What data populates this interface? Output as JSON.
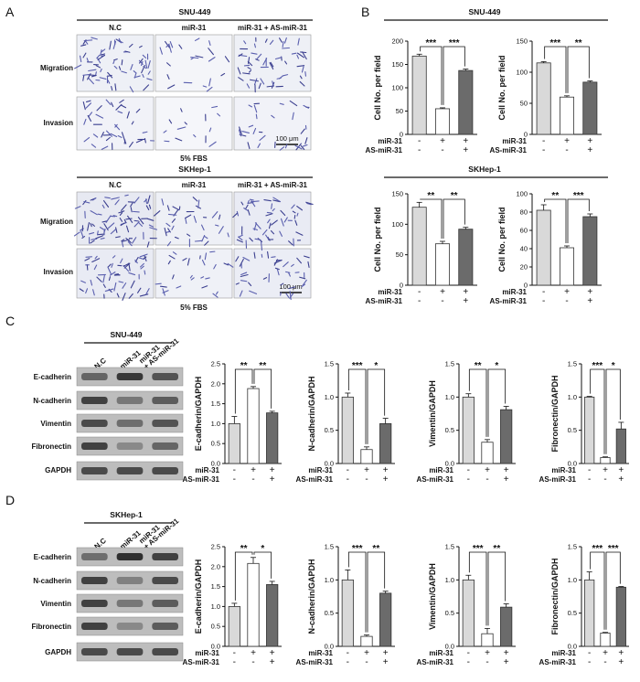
{
  "panels": {
    "A": "A",
    "B": "B",
    "C": "C",
    "D": "D"
  },
  "panel_a": {
    "snu": {
      "title": "SNU-449",
      "cols": [
        "N.C",
        "miR-31",
        "miR-31 + AS-miR-31"
      ],
      "rows": [
        "Migration",
        "Invasion"
      ],
      "scale": "100 μm",
      "footer": "5% FBS"
    },
    "skh": {
      "title": "SKHep-1",
      "cols": [
        "N.C",
        "miR-31",
        "miR-31 + AS-miR-31"
      ],
      "rows": [
        "Migration",
        "Invasion"
      ],
      "scale": "100 μm",
      "footer": "5% FBS"
    }
  },
  "panel_b": {
    "snu_title": "SNU-449",
    "skh_title": "SKHep-1"
  },
  "panel_c": {
    "blot_title": "SNU-449",
    "lanes": [
      "N.C",
      "miR-31",
      "miR-31\n+ AS-miR-31"
    ],
    "proteins": [
      "E-cadherin",
      "N-cadherin",
      "Vimentin",
      "Fibronectin",
      "GAPDH"
    ]
  },
  "panel_d": {
    "blot_title": "SKHep-1",
    "lanes": [
      "N.C",
      "miR-31",
      "miR-31\n+ AS-miR-31"
    ],
    "proteins": [
      "E-cadherin",
      "N-cadherin",
      "Vimentin",
      "Fibronectin",
      "GAPDH"
    ]
  },
  "treatment_rows": {
    "mir": "miR-31",
    "as": "AS-miR-31",
    "mir_signs": [
      "-",
      "+",
      "+"
    ],
    "as_signs": [
      "-",
      "-",
      "+"
    ]
  },
  "colors": {
    "nc": "#d9d9d9",
    "mir": "#ffffff",
    "combo": "#6b6b6b",
    "edge": "#333333"
  },
  "chart_data": [
    {
      "id": "B1",
      "type": "bar",
      "panel": "B",
      "cell_line": "SNU-449",
      "ylabel": "Cell No. per field",
      "categories": [
        "N.C",
        "miR-31",
        "miR-31 + AS-miR-31"
      ],
      "values": [
        168,
        55,
        137
      ],
      "errors": [
        4,
        2,
        3
      ],
      "ylim": [
        0,
        200
      ],
      "yticks": [
        0,
        50,
        100,
        150,
        200
      ],
      "sig": [
        {
          "from": 0,
          "to": 1,
          "label": "***"
        },
        {
          "from": 1,
          "to": 2,
          "label": "***"
        }
      ]
    },
    {
      "id": "B2",
      "type": "bar",
      "panel": "B",
      "cell_line": "SNU-449",
      "ylabel": "Cell No. per field",
      "categories": [
        "N.C",
        "miR-31",
        "miR-31 + AS-miR-31"
      ],
      "values": [
        115,
        60,
        84
      ],
      "errors": [
        2,
        2,
        2
      ],
      "ylim": [
        0,
        150
      ],
      "yticks": [
        0,
        50,
        100,
        150
      ],
      "sig": [
        {
          "from": 0,
          "to": 1,
          "label": "***"
        },
        {
          "from": 1,
          "to": 2,
          "label": "**"
        }
      ]
    },
    {
      "id": "B3",
      "type": "bar",
      "panel": "B",
      "cell_line": "SKHep-1",
      "ylabel": "Cell No. per field",
      "categories": [
        "N.C",
        "miR-31",
        "miR-31 + AS-miR-31"
      ],
      "values": [
        128,
        68,
        92
      ],
      "errors": [
        8,
        4,
        3
      ],
      "ylim": [
        0,
        150
      ],
      "yticks": [
        0,
        50,
        100,
        150
      ],
      "sig": [
        {
          "from": 0,
          "to": 1,
          "label": "**"
        },
        {
          "from": 1,
          "to": 2,
          "label": "**"
        }
      ]
    },
    {
      "id": "B4",
      "type": "bar",
      "panel": "B",
      "cell_line": "SKHep-1",
      "ylabel": "Cell No. per field",
      "categories": [
        "N.C",
        "miR-31",
        "miR-31 + AS-miR-31"
      ],
      "values": [
        82,
        41,
        75
      ],
      "errors": [
        6,
        2,
        3
      ],
      "ylim": [
        0,
        100
      ],
      "yticks": [
        0,
        20,
        40,
        60,
        80,
        100
      ],
      "sig": [
        {
          "from": 0,
          "to": 1,
          "label": "**"
        },
        {
          "from": 1,
          "to": 2,
          "label": "***"
        }
      ]
    },
    {
      "id": "C1",
      "type": "bar",
      "panel": "C",
      "ylabel": "E-cadherin/GAPDH",
      "categories": [
        "N.C",
        "miR-31",
        "miR-31 + AS-miR-31"
      ],
      "values": [
        1.0,
        1.88,
        1.27
      ],
      "errors": [
        0.18,
        0.05,
        0.04
      ],
      "ylim": [
        0,
        2.5
      ],
      "yticks": [
        0.0,
        0.5,
        1.0,
        1.5,
        2.0,
        2.5
      ],
      "sig": [
        {
          "from": 0,
          "to": 1,
          "label": "**"
        },
        {
          "from": 1,
          "to": 2,
          "label": "**"
        }
      ]
    },
    {
      "id": "C2",
      "type": "bar",
      "panel": "C",
      "ylabel": "N-cadherin/GAPDH",
      "categories": [
        "N.C",
        "miR-31",
        "miR-31 + AS-miR-31"
      ],
      "values": [
        1.0,
        0.21,
        0.6
      ],
      "errors": [
        0.06,
        0.04,
        0.08
      ],
      "ylim": [
        0,
        1.5
      ],
      "yticks": [
        0.0,
        0.5,
        1.0,
        1.5
      ],
      "sig": [
        {
          "from": 0,
          "to": 1,
          "label": "***"
        },
        {
          "from": 1,
          "to": 2,
          "label": "*"
        }
      ]
    },
    {
      "id": "C3",
      "type": "bar",
      "panel": "C",
      "ylabel": "Vimentin/GAPDH",
      "categories": [
        "N.C",
        "miR-31",
        "miR-31 + AS-miR-31"
      ],
      "values": [
        1.0,
        0.32,
        0.81
      ],
      "errors": [
        0.05,
        0.04,
        0.05
      ],
      "ylim": [
        0,
        1.5
      ],
      "yticks": [
        0.0,
        0.5,
        1.0,
        1.5
      ],
      "sig": [
        {
          "from": 0,
          "to": 1,
          "label": "**"
        },
        {
          "from": 1,
          "to": 2,
          "label": "*"
        }
      ]
    },
    {
      "id": "C4",
      "type": "bar",
      "panel": "C",
      "ylabel": "Fibronectin/GAPDH",
      "categories": [
        "N.C",
        "miR-31",
        "miR-31 + AS-miR-31"
      ],
      "values": [
        1.0,
        0.09,
        0.52
      ],
      "errors": [
        0.01,
        0.01,
        0.1
      ],
      "ylim": [
        0,
        1.5
      ],
      "yticks": [
        0.0,
        0.5,
        1.0,
        1.5
      ],
      "sig": [
        {
          "from": 0,
          "to": 1,
          "label": "***"
        },
        {
          "from": 1,
          "to": 2,
          "label": "*"
        }
      ]
    },
    {
      "id": "D1",
      "type": "bar",
      "panel": "D",
      "ylabel": "E-cadherin/GAPDH",
      "categories": [
        "N.C",
        "miR-31",
        "miR-31 + AS-miR-31"
      ],
      "values": [
        1.0,
        2.08,
        1.55
      ],
      "errors": [
        0.08,
        0.15,
        0.08
      ],
      "ylim": [
        0,
        2.5
      ],
      "yticks": [
        0.0,
        0.5,
        1.0,
        1.5,
        2.0,
        2.5
      ],
      "sig": [
        {
          "from": 0,
          "to": 1,
          "label": "**"
        },
        {
          "from": 1,
          "to": 2,
          "label": "*"
        }
      ]
    },
    {
      "id": "D2",
      "type": "bar",
      "panel": "D",
      "ylabel": "N-cadherin/GAPDH",
      "categories": [
        "N.C",
        "miR-31",
        "miR-31 + AS-miR-31"
      ],
      "values": [
        1.0,
        0.15,
        0.8
      ],
      "errors": [
        0.15,
        0.02,
        0.03
      ],
      "ylim": [
        0,
        1.5
      ],
      "yticks": [
        0.0,
        0.5,
        1.0,
        1.5
      ],
      "sig": [
        {
          "from": 0,
          "to": 1,
          "label": "***"
        },
        {
          "from": 1,
          "to": 2,
          "label": "**"
        }
      ]
    },
    {
      "id": "D3",
      "type": "bar",
      "panel": "D",
      "ylabel": "Vimentin/GAPDH",
      "categories": [
        "N.C",
        "miR-31",
        "miR-31 + AS-miR-31"
      ],
      "values": [
        1.0,
        0.19,
        0.59
      ],
      "errors": [
        0.07,
        0.08,
        0.05
      ],
      "ylim": [
        0,
        1.5
      ],
      "yticks": [
        0.0,
        0.5,
        1.0,
        1.5
      ],
      "sig": [
        {
          "from": 0,
          "to": 1,
          "label": "***"
        },
        {
          "from": 1,
          "to": 2,
          "label": "**"
        }
      ]
    },
    {
      "id": "D4",
      "type": "bar",
      "panel": "D",
      "ylabel": "Fibronectin/GAPDH",
      "categories": [
        "N.C",
        "miR-31",
        "miR-31 + AS-miR-31"
      ],
      "values": [
        1.0,
        0.2,
        0.89
      ],
      "errors": [
        0.12,
        0.01,
        0.01
      ],
      "ylim": [
        0,
        1.5
      ],
      "yticks": [
        0.0,
        0.5,
        1.0,
        1.5
      ],
      "sig": [
        {
          "from": 0,
          "to": 1,
          "label": "***"
        },
        {
          "from": 1,
          "to": 2,
          "label": "***"
        }
      ]
    }
  ]
}
